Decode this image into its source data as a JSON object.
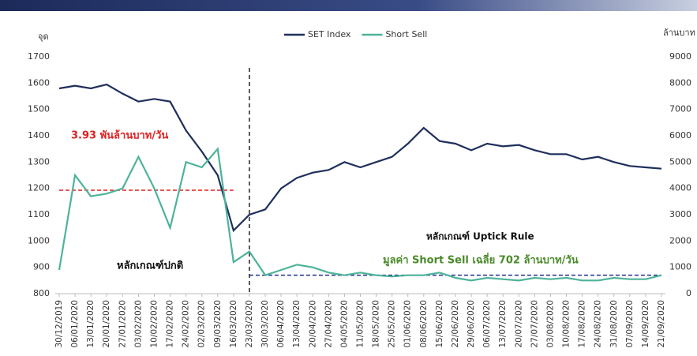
{
  "chart_data": {
    "type": "line",
    "y_label": "จุด",
    "y2_label": "ล้านบาท",
    "categories": [
      "30/12/2019",
      "06/01/2020",
      "13/01/2020",
      "20/01/2020",
      "27/01/2020",
      "03/02/2020",
      "10/02/2020",
      "17/02/2020",
      "24/02/2020",
      "02/03/2020",
      "09/03/2020",
      "16/03/2020",
      "23/03/2020",
      "30/03/2020",
      "06/04/2020",
      "13/04/2020",
      "20/04/2020",
      "27/04/2020",
      "04/05/2020",
      "11/05/2020",
      "18/05/2020",
      "25/05/2020",
      "01/06/2020",
      "08/06/2020",
      "15/06/2020",
      "22/06/2020",
      "29/06/2020",
      "06/07/2020",
      "13/07/2020",
      "20/07/2020",
      "27/07/2020",
      "03/08/2020",
      "10/08/2020",
      "17/08/2020",
      "24/08/2020",
      "31/08/2020",
      "07/09/2020",
      "14/09/2020",
      "21/09/2020"
    ],
    "series": [
      {
        "name": "SET Index",
        "color": "#1f2f5c",
        "values": [
          1580,
          1590,
          1580,
          1595,
          1560,
          1530,
          1540,
          1530,
          1420,
          1340,
          1250,
          1040,
          1100,
          1120,
          1200,
          1240,
          1260,
          1270,
          1300,
          1280,
          1300,
          1320,
          1370,
          1430,
          1380,
          1370,
          1345,
          1370,
          1360,
          1365,
          1345,
          1330,
          1330,
          1310,
          1320,
          1300,
          1285,
          1280,
          1275
        ]
      },
      {
        "name": "Short Sell",
        "color": "#4db39a",
        "axis": "y2",
        "values": [
          900,
          4500,
          3700,
          3800,
          4000,
          5200,
          4000,
          2500,
          5000,
          4800,
          5500,
          1200,
          1600,
          700,
          900,
          1100,
          1000,
          800,
          700,
          800,
          700,
          650,
          700,
          700,
          800,
          600,
          500,
          600,
          550,
          500,
          600,
          550,
          600,
          500,
          500,
          600,
          550,
          550,
          700
        ]
      }
    ],
    "ylim": [
      800,
      1700
    ],
    "yticks": [
      800,
      900,
      1000,
      1100,
      1200,
      1300,
      1400,
      1500,
      1600,
      1700
    ],
    "y2lim": [
      0,
      9000
    ],
    "y2ticks": [
      0,
      1000,
      2000,
      3000,
      4000,
      5000,
      6000,
      7000,
      8000,
      9000
    ],
    "reference_lines": [
      {
        "value": 3930,
        "axis": "y2",
        "color": "#e02020",
        "start": "30/12/2019",
        "end": "16/03/2020"
      },
      {
        "value": 702,
        "axis": "y2",
        "color": "#1f2f8c",
        "start": "23/03/2020",
        "end": "21/09/2020"
      }
    ],
    "divider": "23/03/2020",
    "annotations": [
      {
        "text": "3.93 พันล้านบาท/วัน",
        "color": "#e02020"
      },
      {
        "text": "หลักเกณฑ์ปกติ",
        "color": "#111111"
      },
      {
        "text": "หลักเกณฑ์ Uptick Rule",
        "color": "#111111"
      },
      {
        "text": "มูลค่า Short Sell เฉลี่ย 702 ล้านบาท/วัน",
        "color": "#4a8a2a"
      }
    ],
    "legend": "top"
  }
}
